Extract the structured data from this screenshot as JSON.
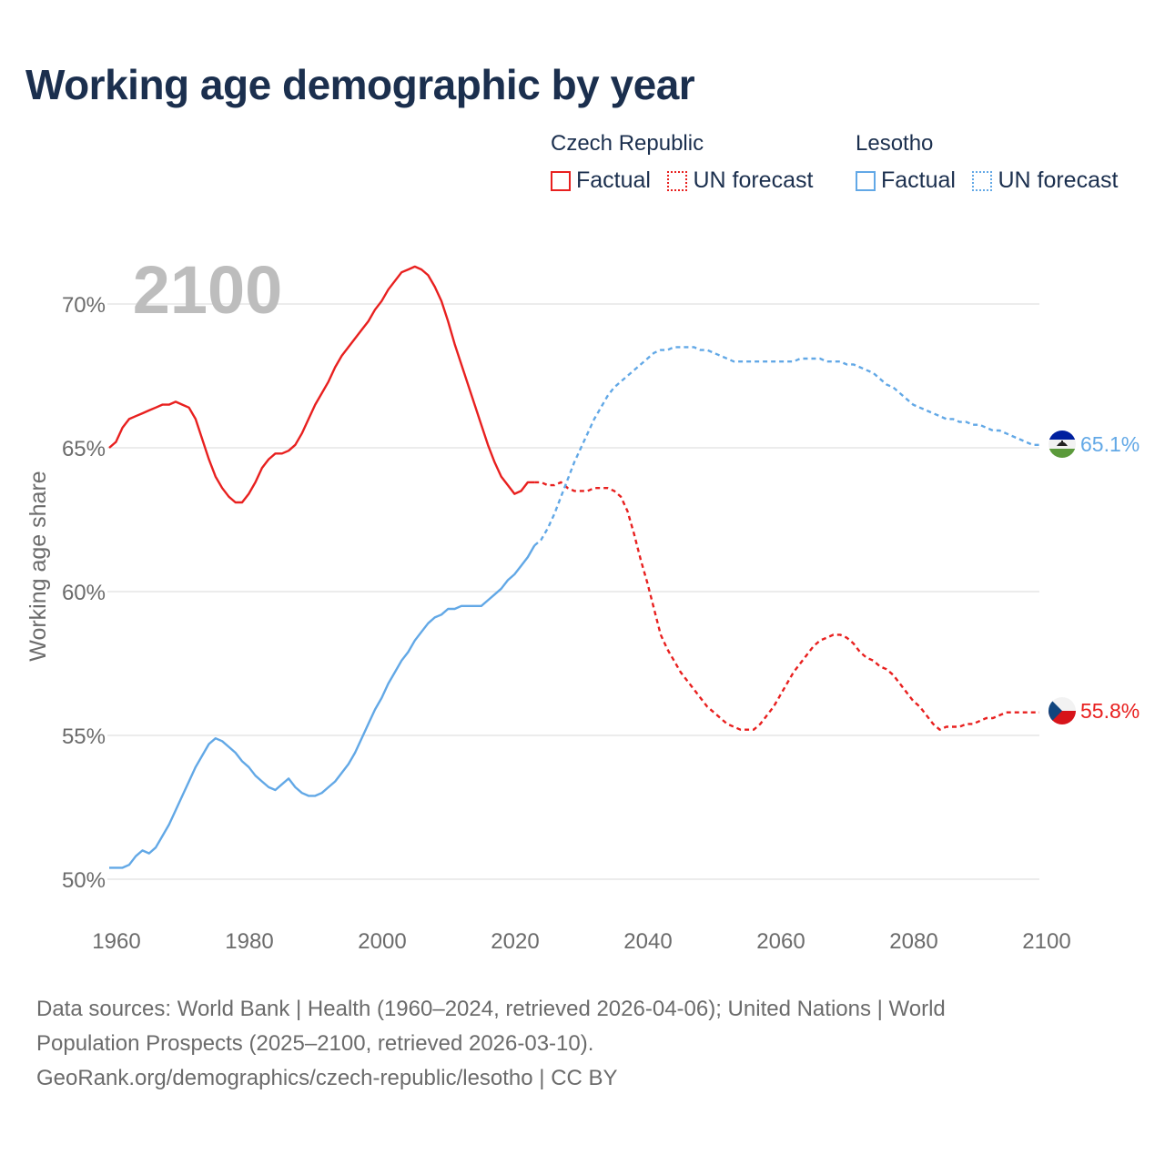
{
  "title": "Working age demographic by year",
  "legend": {
    "groups": [
      {
        "name": "Czech Republic",
        "factual": "Factual",
        "forecast": "UN forecast"
      },
      {
        "name": "Lesotho",
        "factual": "Factual",
        "forecast": "UN forecast"
      }
    ]
  },
  "colors": {
    "czech": "#e8201f",
    "lesotho": "#62a8e6",
    "grid": "#e6e6e6",
    "axis_text": "#6b6b6b",
    "year_watermark": "#bdbdbd"
  },
  "year_display": "2100",
  "chart_data": {
    "type": "line",
    "title": "Working age demographic by year",
    "xlabel": "",
    "ylabel": "Working age share",
    "xlim": [
      1960,
      2100
    ],
    "ylim": [
      50,
      72
    ],
    "x_ticks": [
      1960,
      1980,
      2000,
      2020,
      2040,
      2060,
      2080,
      2100
    ],
    "y_ticks": [
      50,
      55,
      60,
      65,
      70
    ],
    "y_tick_labels": [
      "50%",
      "55%",
      "60%",
      "65%",
      "70%"
    ],
    "factual_range": [
      1960,
      2024
    ],
    "forecast_range": [
      2024,
      2100
    ],
    "series": [
      {
        "name": "Czech Republic",
        "key": "czech",
        "end_label": "55.8%",
        "points": [
          [
            1960,
            65.0
          ],
          [
            1961,
            65.2
          ],
          [
            1962,
            65.7
          ],
          [
            1963,
            66.0
          ],
          [
            1964,
            66.1
          ],
          [
            1965,
            66.2
          ],
          [
            1966,
            66.3
          ],
          [
            1967,
            66.4
          ],
          [
            1968,
            66.5
          ],
          [
            1969,
            66.5
          ],
          [
            1970,
            66.6
          ],
          [
            1971,
            66.5
          ],
          [
            1972,
            66.4
          ],
          [
            1973,
            66.0
          ],
          [
            1974,
            65.3
          ],
          [
            1975,
            64.6
          ],
          [
            1976,
            64.0
          ],
          [
            1977,
            63.6
          ],
          [
            1978,
            63.3
          ],
          [
            1979,
            63.1
          ],
          [
            1980,
            63.1
          ],
          [
            1981,
            63.4
          ],
          [
            1982,
            63.8
          ],
          [
            1983,
            64.3
          ],
          [
            1984,
            64.6
          ],
          [
            1985,
            64.8
          ],
          [
            1986,
            64.8
          ],
          [
            1987,
            64.9
          ],
          [
            1988,
            65.1
          ],
          [
            1989,
            65.5
          ],
          [
            1990,
            66.0
          ],
          [
            1991,
            66.5
          ],
          [
            1992,
            66.9
          ],
          [
            1993,
            67.3
          ],
          [
            1994,
            67.8
          ],
          [
            1995,
            68.2
          ],
          [
            1996,
            68.5
          ],
          [
            1997,
            68.8
          ],
          [
            1998,
            69.1
          ],
          [
            1999,
            69.4
          ],
          [
            2000,
            69.8
          ],
          [
            2001,
            70.1
          ],
          [
            2002,
            70.5
          ],
          [
            2003,
            70.8
          ],
          [
            2004,
            71.1
          ],
          [
            2005,
            71.2
          ],
          [
            2006,
            71.3
          ],
          [
            2007,
            71.2
          ],
          [
            2008,
            71.0
          ],
          [
            2009,
            70.6
          ],
          [
            2010,
            70.1
          ],
          [
            2011,
            69.4
          ],
          [
            2012,
            68.6
          ],
          [
            2013,
            67.9
          ],
          [
            2014,
            67.2
          ],
          [
            2015,
            66.5
          ],
          [
            2016,
            65.8
          ],
          [
            2017,
            65.1
          ],
          [
            2018,
            64.5
          ],
          [
            2019,
            64.0
          ],
          [
            2020,
            63.7
          ],
          [
            2021,
            63.4
          ],
          [
            2022,
            63.5
          ],
          [
            2023,
            63.8
          ],
          [
            2024,
            63.8
          ],
          [
            2025,
            63.8
          ],
          [
            2026,
            63.7
          ],
          [
            2027,
            63.7
          ],
          [
            2028,
            63.8
          ],
          [
            2029,
            63.6
          ],
          [
            2030,
            63.5
          ],
          [
            2031,
            63.5
          ],
          [
            2032,
            63.5
          ],
          [
            2033,
            63.6
          ],
          [
            2034,
            63.6
          ],
          [
            2035,
            63.6
          ],
          [
            2036,
            63.5
          ],
          [
            2037,
            63.3
          ],
          [
            2038,
            62.8
          ],
          [
            2039,
            62.0
          ],
          [
            2040,
            61.1
          ],
          [
            2041,
            60.3
          ],
          [
            2042,
            59.4
          ],
          [
            2043,
            58.5
          ],
          [
            2044,
            58.0
          ],
          [
            2045,
            57.6
          ],
          [
            2046,
            57.2
          ],
          [
            2047,
            56.9
          ],
          [
            2048,
            56.6
          ],
          [
            2049,
            56.3
          ],
          [
            2050,
            56.0
          ],
          [
            2051,
            55.8
          ],
          [
            2052,
            55.6
          ],
          [
            2053,
            55.4
          ],
          [
            2054,
            55.3
          ],
          [
            2055,
            55.2
          ],
          [
            2056,
            55.2
          ],
          [
            2057,
            55.2
          ],
          [
            2058,
            55.4
          ],
          [
            2059,
            55.7
          ],
          [
            2060,
            56.0
          ],
          [
            2061,
            56.4
          ],
          [
            2062,
            56.8
          ],
          [
            2063,
            57.2
          ],
          [
            2064,
            57.5
          ],
          [
            2065,
            57.8
          ],
          [
            2066,
            58.1
          ],
          [
            2067,
            58.3
          ],
          [
            2068,
            58.4
          ],
          [
            2069,
            58.5
          ],
          [
            2070,
            58.5
          ],
          [
            2071,
            58.4
          ],
          [
            2072,
            58.2
          ],
          [
            2073,
            57.9
          ],
          [
            2074,
            57.7
          ],
          [
            2075,
            57.6
          ],
          [
            2076,
            57.4
          ],
          [
            2077,
            57.3
          ],
          [
            2078,
            57.1
          ],
          [
            2079,
            56.8
          ],
          [
            2080,
            56.5
          ],
          [
            2081,
            56.2
          ],
          [
            2082,
            56.0
          ],
          [
            2083,
            55.7
          ],
          [
            2084,
            55.4
          ],
          [
            2085,
            55.2
          ],
          [
            2086,
            55.3
          ],
          [
            2087,
            55.3
          ],
          [
            2088,
            55.3
          ],
          [
            2089,
            55.4
          ],
          [
            2090,
            55.4
          ],
          [
            2091,
            55.5
          ],
          [
            2092,
            55.6
          ],
          [
            2093,
            55.6
          ],
          [
            2094,
            55.7
          ],
          [
            2095,
            55.8
          ],
          [
            2096,
            55.8
          ],
          [
            2097,
            55.8
          ],
          [
            2098,
            55.8
          ],
          [
            2099,
            55.8
          ],
          [
            2100,
            55.8
          ]
        ]
      },
      {
        "name": "Lesotho",
        "key": "lesotho",
        "end_label": "65.1%",
        "points": [
          [
            1960,
            50.4
          ],
          [
            1961,
            50.4
          ],
          [
            1962,
            50.4
          ],
          [
            1963,
            50.5
          ],
          [
            1964,
            50.8
          ],
          [
            1965,
            51.0
          ],
          [
            1966,
            50.9
          ],
          [
            1967,
            51.1
          ],
          [
            1968,
            51.5
          ],
          [
            1969,
            51.9
          ],
          [
            1970,
            52.4
          ],
          [
            1971,
            52.9
          ],
          [
            1972,
            53.4
          ],
          [
            1973,
            53.9
          ],
          [
            1974,
            54.3
          ],
          [
            1975,
            54.7
          ],
          [
            1976,
            54.9
          ],
          [
            1977,
            54.8
          ],
          [
            1978,
            54.6
          ],
          [
            1979,
            54.4
          ],
          [
            1980,
            54.1
          ],
          [
            1981,
            53.9
          ],
          [
            1982,
            53.6
          ],
          [
            1983,
            53.4
          ],
          [
            1984,
            53.2
          ],
          [
            1985,
            53.1
          ],
          [
            1986,
            53.3
          ],
          [
            1987,
            53.5
          ],
          [
            1988,
            53.2
          ],
          [
            1989,
            53.0
          ],
          [
            1990,
            52.9
          ],
          [
            1991,
            52.9
          ],
          [
            1992,
            53.0
          ],
          [
            1993,
            53.2
          ],
          [
            1994,
            53.4
          ],
          [
            1995,
            53.7
          ],
          [
            1996,
            54.0
          ],
          [
            1997,
            54.4
          ],
          [
            1998,
            54.9
          ],
          [
            1999,
            55.4
          ],
          [
            2000,
            55.9
          ],
          [
            2001,
            56.3
          ],
          [
            2002,
            56.8
          ],
          [
            2003,
            57.2
          ],
          [
            2004,
            57.6
          ],
          [
            2005,
            57.9
          ],
          [
            2006,
            58.3
          ],
          [
            2007,
            58.6
          ],
          [
            2008,
            58.9
          ],
          [
            2009,
            59.1
          ],
          [
            2010,
            59.2
          ],
          [
            2011,
            59.4
          ],
          [
            2012,
            59.4
          ],
          [
            2013,
            59.5
          ],
          [
            2014,
            59.5
          ],
          [
            2015,
            59.5
          ],
          [
            2016,
            59.5
          ],
          [
            2017,
            59.7
          ],
          [
            2018,
            59.9
          ],
          [
            2019,
            60.1
          ],
          [
            2020,
            60.4
          ],
          [
            2021,
            60.6
          ],
          [
            2022,
            60.9
          ],
          [
            2023,
            61.2
          ],
          [
            2024,
            61.6
          ],
          [
            2025,
            61.8
          ],
          [
            2026,
            62.2
          ],
          [
            2027,
            62.7
          ],
          [
            2028,
            63.3
          ],
          [
            2029,
            63.9
          ],
          [
            2030,
            64.5
          ],
          [
            2031,
            65.0
          ],
          [
            2032,
            65.5
          ],
          [
            2033,
            66.0
          ],
          [
            2034,
            66.4
          ],
          [
            2035,
            66.8
          ],
          [
            2036,
            67.1
          ],
          [
            2037,
            67.3
          ],
          [
            2038,
            67.5
          ],
          [
            2039,
            67.7
          ],
          [
            2040,
            67.9
          ],
          [
            2041,
            68.1
          ],
          [
            2042,
            68.3
          ],
          [
            2043,
            68.4
          ],
          [
            2044,
            68.4
          ],
          [
            2045,
            68.5
          ],
          [
            2046,
            68.5
          ],
          [
            2047,
            68.5
          ],
          [
            2048,
            68.5
          ],
          [
            2049,
            68.4
          ],
          [
            2050,
            68.4
          ],
          [
            2051,
            68.3
          ],
          [
            2052,
            68.2
          ],
          [
            2053,
            68.1
          ],
          [
            2054,
            68.0
          ],
          [
            2055,
            68.0
          ],
          [
            2056,
            68.0
          ],
          [
            2057,
            68.0
          ],
          [
            2058,
            68.0
          ],
          [
            2059,
            68.0
          ],
          [
            2060,
            68.0
          ],
          [
            2061,
            68.0
          ],
          [
            2062,
            68.0
          ],
          [
            2063,
            68.0
          ],
          [
            2064,
            68.1
          ],
          [
            2065,
            68.1
          ],
          [
            2066,
            68.1
          ],
          [
            2067,
            68.1
          ],
          [
            2068,
            68.0
          ],
          [
            2069,
            68.0
          ],
          [
            2070,
            68.0
          ],
          [
            2071,
            67.9
          ],
          [
            2072,
            67.9
          ],
          [
            2073,
            67.8
          ],
          [
            2074,
            67.7
          ],
          [
            2075,
            67.6
          ],
          [
            2076,
            67.4
          ],
          [
            2077,
            67.2
          ],
          [
            2078,
            67.1
          ],
          [
            2079,
            66.9
          ],
          [
            2080,
            66.7
          ],
          [
            2081,
            66.5
          ],
          [
            2082,
            66.4
          ],
          [
            2083,
            66.3
          ],
          [
            2084,
            66.2
          ],
          [
            2085,
            66.1
          ],
          [
            2086,
            66.0
          ],
          [
            2087,
            66.0
          ],
          [
            2088,
            65.9
          ],
          [
            2089,
            65.9
          ],
          [
            2090,
            65.8
          ],
          [
            2091,
            65.8
          ],
          [
            2092,
            65.7
          ],
          [
            2093,
            65.6
          ],
          [
            2094,
            65.6
          ],
          [
            2095,
            65.5
          ],
          [
            2096,
            65.4
          ],
          [
            2097,
            65.3
          ],
          [
            2098,
            65.2
          ],
          [
            2099,
            65.1
          ],
          [
            2100,
            65.1
          ]
        ]
      }
    ]
  },
  "footer": {
    "line1": "Data sources: World Bank | Health (1960–2024, retrieved 2026-04-06); United Nations | World",
    "line2": "Population Prospects (2025–2100, retrieved 2026-03-10).",
    "line3": "GeoRank.org/demographics/czech-republic/lesotho | CC BY"
  }
}
